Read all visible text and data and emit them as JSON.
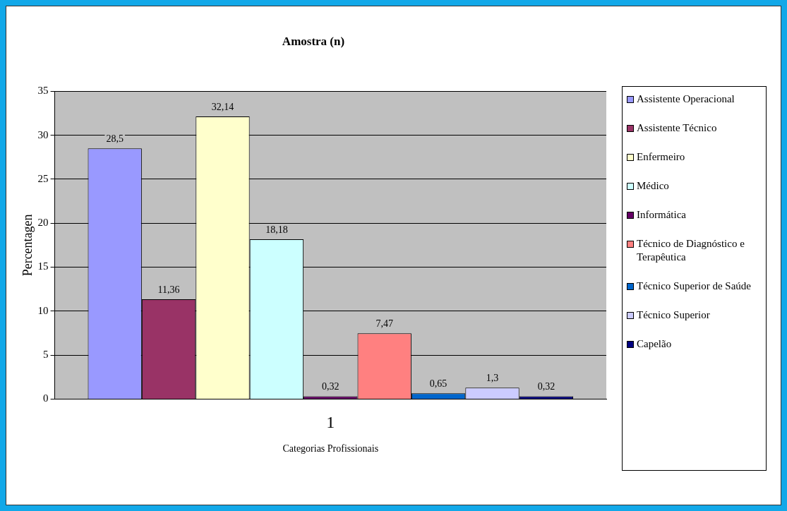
{
  "chart_data": {
    "type": "bar",
    "title": "Amostra (n)",
    "xlabel": "Categorias Profissionais",
    "ylabel": "Percentagen",
    "categories": [
      "1"
    ],
    "series": [
      {
        "name": "Assistente Operacional",
        "color": "#9999ff",
        "values": [
          28.5
        ],
        "value_labels": [
          "28,5"
        ]
      },
      {
        "name": "Assistente Técnico",
        "color": "#993366",
        "values": [
          11.36
        ],
        "value_labels": [
          "11,36"
        ]
      },
      {
        "name": "Enfermeiro",
        "color": "#ffffcc",
        "values": [
          32.14
        ],
        "value_labels": [
          "32,14"
        ]
      },
      {
        "name": "Médico",
        "color": "#ccffff",
        "values": [
          18.18
        ],
        "value_labels": [
          "18,18"
        ]
      },
      {
        "name": "Informática",
        "color": "#660066",
        "values": [
          0.32
        ],
        "value_labels": [
          "0,32"
        ]
      },
      {
        "name": "Técnico de Diagnóstico e Terapêutica",
        "color": "#ff8080",
        "values": [
          7.47
        ],
        "value_labels": [
          "7,47"
        ]
      },
      {
        "name": "Técnico Superior de Saúde",
        "color": "#0066cc",
        "values": [
          0.65
        ],
        "value_labels": [
          "0,65"
        ]
      },
      {
        "name": "Técnico Superior",
        "color": "#ccccff",
        "values": [
          1.3
        ],
        "value_labels": [
          "1,3"
        ]
      },
      {
        "name": "Capelão",
        "color": "#000080",
        "values": [
          0.32
        ],
        "value_labels": [
          "0,32"
        ]
      }
    ],
    "ylim": [
      0,
      35
    ],
    "yticks": [
      0,
      5,
      10,
      15,
      20,
      25,
      30,
      35
    ],
    "grid": "y",
    "legend": "right"
  }
}
